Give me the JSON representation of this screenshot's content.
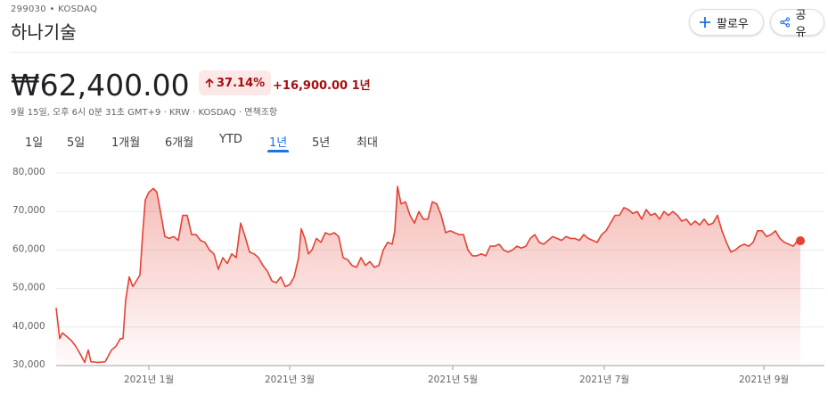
{
  "header": {
    "ticker": "299030 • KOSDAQ",
    "name": "하나기술",
    "follow": "팔로우",
    "share": "공유",
    "price": "₩62,400.00",
    "change_percent": "37.14%",
    "change": "+16,900.00 1년",
    "timestamp": "9월 15일, 오후 6시 0분 31초 GMT+9 · KRW · KOSDAQ · 면책조항"
  },
  "tabs": {
    "items": [
      "1일",
      "5일",
      "1개월",
      "6개월",
      "YTD",
      "1년",
      "5년",
      "최대"
    ],
    "active": 5
  },
  "chart_data": {
    "type": "line",
    "color": "#e34234",
    "grid": true,
    "x": [
      0,
      4,
      7,
      12,
      17,
      22,
      27,
      32,
      36,
      39,
      47,
      55,
      62,
      67,
      72,
      75,
      78,
      82,
      86,
      90,
      94,
      97,
      100,
      104,
      109,
      113,
      117,
      122,
      127,
      132,
      137,
      142,
      147,
      152,
      157,
      162,
      167,
      172,
      177,
      182,
      187,
      192,
      197,
      202,
      207,
      212,
      217,
      222,
      227,
      232,
      237,
      242,
      247,
      252,
      257,
      262,
      267,
      272,
      275,
      279,
      283,
      287,
      292,
      297,
      302,
      307,
      312,
      317,
      322,
      327,
      332,
      337,
      342,
      347,
      352,
      357,
      362,
      367,
      372,
      377,
      380,
      383,
      387,
      392,
      397,
      402,
      407,
      412,
      417,
      422,
      427,
      432,
      437,
      442,
      447,
      452,
      457,
      462,
      467,
      472,
      477,
      482,
      487,
      492,
      497,
      502,
      507,
      512,
      517,
      522,
      527,
      532,
      537,
      542,
      547,
      552,
      557,
      562,
      567,
      572,
      577,
      582,
      587,
      592,
      597,
      602,
      607,
      612,
      617,
      622,
      627,
      632,
      637,
      642,
      647,
      652,
      657,
      662,
      667,
      672,
      677,
      682,
      687,
      692,
      697,
      702,
      707,
      712,
      717,
      722,
      727,
      732,
      737,
      742,
      747,
      752,
      757,
      762,
      767,
      772,
      777,
      782,
      787,
      792,
      797,
      802,
      807,
      812,
      817,
      822,
      827,
      832,
      835
    ],
    "values": [
      45000,
      37000,
      38500,
      37500,
      36500,
      35000,
      33000,
      30800,
      34000,
      31000,
      30800,
      31000,
      34000,
      35000,
      37000,
      37000,
      47000,
      53000,
      50500,
      52000,
      53500,
      64000,
      73000,
      75000,
      76000,
      75000,
      70000,
      63500,
      63000,
      63500,
      62500,
      69000,
      69000,
      64000,
      64000,
      62500,
      62000,
      60000,
      59000,
      55000,
      58000,
      56500,
      59000,
      58000,
      67000,
      63500,
      59500,
      59000,
      58000,
      56000,
      54500,
      52000,
      51500,
      53000,
      50500,
      51000,
      53000,
      58000,
      65500,
      63000,
      59000,
      60000,
      63000,
      62000,
      64500,
      64000,
      64500,
      63500,
      58000,
      57500,
      56000,
      55500,
      58000,
      56000,
      57000,
      55500,
      56000,
      60000,
      62000,
      61500,
      65000,
      76500,
      72000,
      72500,
      69000,
      67000,
      70000,
      68000,
      68000,
      72500,
      72000,
      69000,
      64500,
      65000,
      64500,
      64000,
      64000,
      60000,
      58500,
      58500,
      59000,
      58500,
      61000,
      61000,
      61500,
      60000,
      59500,
      60000,
      61000,
      60500,
      61000,
      63000,
      64000,
      62000,
      61500,
      62500,
      63500,
      63000,
      62500,
      63500,
      63000,
      63000,
      62500,
      64000,
      63000,
      62500,
      62000,
      64000,
      65000,
      67000,
      69000,
      69000,
      71000,
      70500,
      69500,
      70000,
      68000,
      70500,
      69000,
      69500,
      68000,
      70000,
      69000,
      70000,
      69000,
      67500,
      68000,
      66500,
      67500,
      66500,
      68000,
      66500,
      67000,
      69000,
      65000,
      62000,
      59500,
      60000,
      61000,
      61500,
      61000,
      62000,
      65000,
      65000,
      63500,
      64000,
      65000,
      63000,
      62000,
      61500,
      61000,
      62500,
      62400
    ],
    "xlim": [
      0,
      835
    ],
    "xticks": [
      {
        "value": 104,
        "label": "2021년 1월"
      },
      {
        "value": 262,
        "label": "2021년 3월"
      },
      {
        "value": 445,
        "label": "2021년 5월"
      },
      {
        "value": 615,
        "label": "2021년 7월"
      },
      {
        "value": 794,
        "label": "2021년 9월"
      }
    ],
    "ylim": [
      30000,
      80000
    ],
    "yticks": [
      {
        "value": 30000,
        "label": "30,000"
      },
      {
        "value": 40000,
        "label": "40,000"
      },
      {
        "value": 50000,
        "label": "50,000"
      },
      {
        "value": 60000,
        "label": "60,000"
      },
      {
        "value": 70000,
        "label": "70,000"
      },
      {
        "value": 80000,
        "label": "80,000"
      }
    ]
  }
}
